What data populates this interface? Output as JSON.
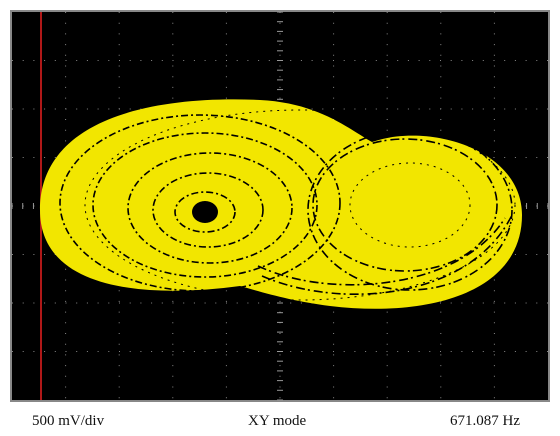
{
  "footer": {
    "scale": "500 mV/div",
    "mode": "XY mode",
    "frequency": "671.087 Hz"
  }
}
